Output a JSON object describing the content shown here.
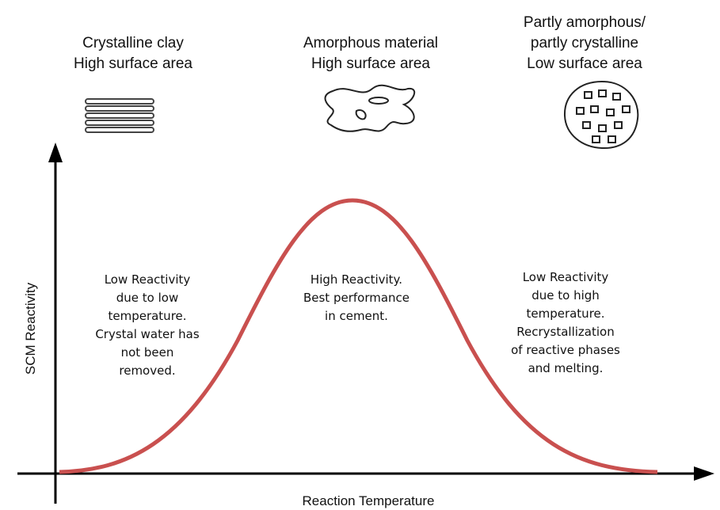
{
  "axes": {
    "y_label": "SCM Reactivity",
    "x_label": "Reaction Temperature"
  },
  "stages": [
    {
      "title": [
        "Crystalline clay",
        "High surface area"
      ],
      "description": [
        "Low Reactivity",
        "due to low",
        "temperature.",
        "Crystal water has",
        "not been",
        "removed."
      ]
    },
    {
      "title": [
        "Amorphous material",
        "High surface area"
      ],
      "description": [
        "High Reactivity.",
        "Best performance",
        "in cement."
      ]
    },
    {
      "title": [
        "Partly amorphous/",
        "partly crystalline",
        "Low surface area"
      ],
      "description": [
        "Low Reactivity",
        "due to high",
        "temperature.",
        "Recrystallization",
        "of reactive phases",
        "and melting."
      ]
    }
  ]
}
